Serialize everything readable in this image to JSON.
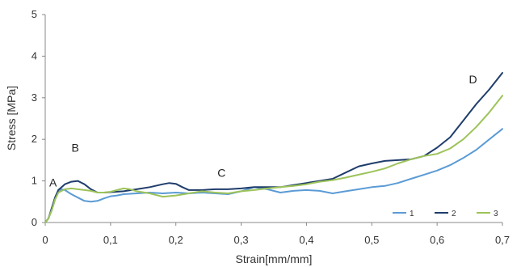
{
  "chart_data": {
    "type": "line",
    "xlabel": "Strain[mm/mm]",
    "ylabel": "Stress [MPa]",
    "xlim": [
      0,
      0.7
    ],
    "ylim": [
      0,
      5
    ],
    "x_ticks": [
      "0",
      "0,1",
      "0,2",
      "0,3",
      "0,4",
      "0,5",
      "0,6",
      "0,7"
    ],
    "y_ticks": [
      "0",
      "1",
      "2",
      "3",
      "4",
      "5"
    ],
    "x_tick_values": [
      0,
      0.1,
      0.2,
      0.3,
      0.4,
      0.5,
      0.6,
      0.7
    ],
    "y_tick_values": [
      0,
      1,
      2,
      3,
      4,
      5
    ],
    "grid": false,
    "legend_position": "bottom-right",
    "annotations": [
      {
        "text": "A",
        "x": 0.012,
        "y": 0.87
      },
      {
        "text": "B",
        "x": 0.046,
        "y": 1.7
      },
      {
        "text": "C",
        "x": 0.27,
        "y": 1.1
      },
      {
        "text": "D",
        "x": 0.655,
        "y": 3.35
      }
    ],
    "series": [
      {
        "name": "1",
        "color": "#5b9bd5",
        "x": [
          0,
          0.005,
          0.01,
          0.015,
          0.02,
          0.025,
          0.03,
          0.04,
          0.05,
          0.06,
          0.07,
          0.08,
          0.09,
          0.1,
          0.11,
          0.12,
          0.14,
          0.16,
          0.18,
          0.2,
          0.22,
          0.24,
          0.26,
          0.28,
          0.3,
          0.32,
          0.34,
          0.36,
          0.38,
          0.4,
          0.42,
          0.44,
          0.46,
          0.48,
          0.5,
          0.52,
          0.54,
          0.56,
          0.58,
          0.6,
          0.62,
          0.64,
          0.66,
          0.68,
          0.7
        ],
        "y": [
          0,
          0.1,
          0.3,
          0.55,
          0.72,
          0.8,
          0.78,
          0.68,
          0.6,
          0.52,
          0.5,
          0.52,
          0.58,
          0.63,
          0.65,
          0.68,
          0.7,
          0.72,
          0.7,
          0.72,
          0.7,
          0.72,
          0.7,
          0.68,
          0.75,
          0.85,
          0.8,
          0.72,
          0.76,
          0.78,
          0.76,
          0.7,
          0.75,
          0.8,
          0.85,
          0.88,
          0.95,
          1.05,
          1.15,
          1.25,
          1.38,
          1.55,
          1.75,
          2.0,
          2.25
        ]
      },
      {
        "name": "2",
        "color": "#1f3d6b",
        "x": [
          0,
          0.005,
          0.01,
          0.015,
          0.02,
          0.03,
          0.04,
          0.05,
          0.06,
          0.07,
          0.08,
          0.09,
          0.1,
          0.12,
          0.14,
          0.16,
          0.18,
          0.19,
          0.2,
          0.21,
          0.22,
          0.24,
          0.26,
          0.28,
          0.3,
          0.32,
          0.34,
          0.36,
          0.38,
          0.4,
          0.42,
          0.44,
          0.46,
          0.48,
          0.5,
          0.52,
          0.54,
          0.56,
          0.58,
          0.6,
          0.62,
          0.64,
          0.66,
          0.68,
          0.7
        ],
        "y": [
          0,
          0.1,
          0.35,
          0.6,
          0.78,
          0.92,
          0.98,
          1.0,
          0.92,
          0.8,
          0.72,
          0.72,
          0.73,
          0.75,
          0.8,
          0.85,
          0.92,
          0.95,
          0.93,
          0.85,
          0.78,
          0.78,
          0.8,
          0.8,
          0.82,
          0.85,
          0.85,
          0.85,
          0.9,
          0.95,
          1.0,
          1.05,
          1.2,
          1.35,
          1.42,
          1.48,
          1.5,
          1.52,
          1.6,
          1.8,
          2.05,
          2.45,
          2.85,
          3.2,
          3.6
        ]
      },
      {
        "name": "3",
        "color": "#9dc35a",
        "x": [
          0,
          0.005,
          0.01,
          0.015,
          0.02,
          0.03,
          0.04,
          0.05,
          0.06,
          0.07,
          0.08,
          0.09,
          0.1,
          0.11,
          0.12,
          0.13,
          0.14,
          0.16,
          0.18,
          0.2,
          0.22,
          0.24,
          0.26,
          0.28,
          0.3,
          0.32,
          0.34,
          0.36,
          0.38,
          0.4,
          0.42,
          0.44,
          0.46,
          0.48,
          0.5,
          0.52,
          0.54,
          0.56,
          0.58,
          0.6,
          0.62,
          0.64,
          0.66,
          0.68,
          0.7
        ],
        "y": [
          0,
          0.1,
          0.3,
          0.55,
          0.72,
          0.8,
          0.82,
          0.8,
          0.78,
          0.76,
          0.72,
          0.72,
          0.74,
          0.78,
          0.82,
          0.8,
          0.75,
          0.7,
          0.62,
          0.65,
          0.7,
          0.75,
          0.72,
          0.7,
          0.75,
          0.78,
          0.82,
          0.85,
          0.88,
          0.92,
          0.98,
          1.02,
          1.08,
          1.15,
          1.22,
          1.3,
          1.42,
          1.52,
          1.6,
          1.65,
          1.78,
          2.0,
          2.3,
          2.65,
          3.05
        ]
      }
    ]
  }
}
